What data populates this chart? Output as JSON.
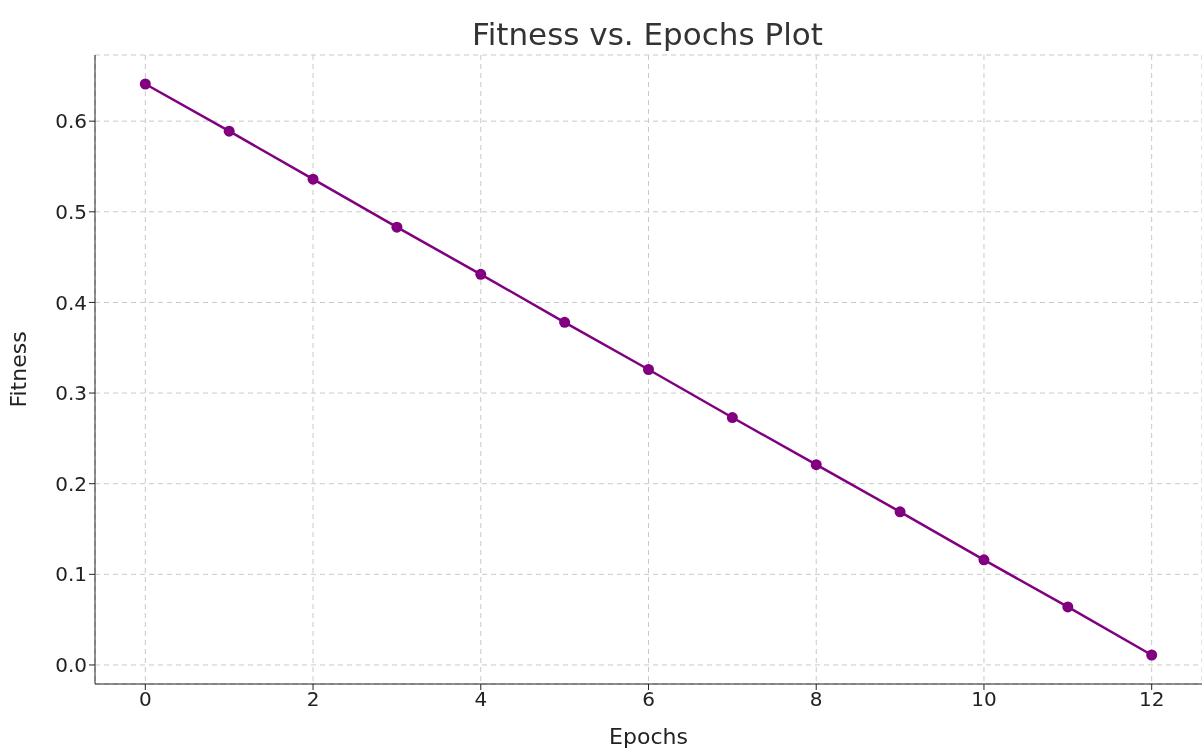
{
  "chart_data": {
    "type": "line",
    "title": "Fitness vs. Epochs Plot",
    "xlabel": "Epochs",
    "ylabel": "Fitness",
    "x": [
      0,
      1,
      2,
      3,
      4,
      5,
      6,
      7,
      8,
      9,
      10,
      11,
      12
    ],
    "series": [
      {
        "color": "#800080",
        "values": [
          0.641,
          0.589,
          0.536,
          0.483,
          0.431,
          0.378,
          0.326,
          0.273,
          0.221,
          0.169,
          0.116,
          0.064,
          0.011
        ]
      }
    ],
    "xlim": [
      -0.6,
      12.6
    ],
    "xticks": [
      0,
      2,
      4,
      6,
      8,
      10,
      12
    ],
    "ylim": [
      -0.021,
      0.673
    ],
    "yticks": [
      {
        "value": 0,
        "label": "0.0"
      },
      0.1,
      0.2,
      0.3,
      0.4,
      0.5,
      0.6
    ],
    "grid": true,
    "marker": "circle",
    "line_style": "solid"
  }
}
